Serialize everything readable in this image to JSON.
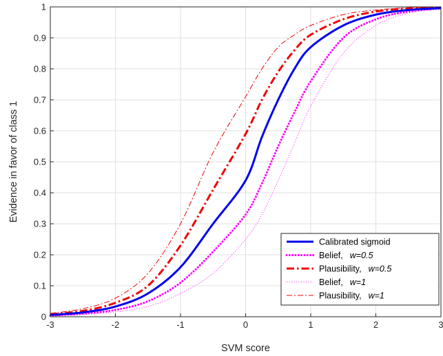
{
  "chart_data": {
    "type": "line",
    "title": "",
    "xlabel": "SVM score",
    "ylabel": "Evidence in favor of class 1",
    "xlim": [
      -3,
      3
    ],
    "ylim": [
      0,
      1
    ],
    "xticks": [
      -3,
      -2,
      -1,
      0,
      1,
      2,
      3
    ],
    "xtick_labels": [
      "-3",
      "-2",
      "-1",
      "0",
      "1",
      "2",
      "3"
    ],
    "yticks": [
      0,
      0.1,
      0.2,
      0.3,
      0.4,
      0.5,
      0.6,
      0.7,
      0.8,
      0.9,
      1
    ],
    "ytick_labels": [
      "0",
      "0.1",
      "0.2",
      "0.3",
      "0.4",
      "0.5",
      "0.6",
      "0.7",
      "0.8",
      "0.9",
      "1"
    ],
    "grid": true,
    "legend_position": "bottom-right",
    "x": [
      -3,
      -2.5,
      -2,
      -1.5,
      -1,
      -0.5,
      0,
      0.25,
      0.5,
      0.75,
      1,
      1.5,
      2,
      2.5,
      3
    ],
    "series": [
      {
        "name": "Calibrated sigmoid",
        "name_suffix": "",
        "color": "#0000ee",
        "dash": "solid",
        "width": "thick",
        "values": [
          0.006,
          0.014,
          0.033,
          0.075,
          0.16,
          0.3,
          0.44,
          0.58,
          0.7,
          0.8,
          0.87,
          0.94,
          0.975,
          0.99,
          0.996
        ]
      },
      {
        "name": "Belief,",
        "name_suffix": "w=0.5",
        "color": "#ff00ff",
        "dash": "dotted",
        "width": "thick",
        "values": [
          0.004,
          0.01,
          0.022,
          0.05,
          0.11,
          0.21,
          0.33,
          0.43,
          0.55,
          0.66,
          0.76,
          0.9,
          0.96,
          0.985,
          0.995
        ]
      },
      {
        "name": "Plausibility,",
        "name_suffix": "w=0.5",
        "color": "#ee0000",
        "dash": "dashdot",
        "width": "thick",
        "values": [
          0.008,
          0.019,
          0.045,
          0.1,
          0.23,
          0.41,
          0.59,
          0.7,
          0.79,
          0.86,
          0.91,
          0.96,
          0.985,
          0.995,
          0.998
        ]
      },
      {
        "name": "Belief,",
        "name_suffix": "w=1",
        "color": "#ff00ff",
        "dash": "dotted",
        "width": "thin",
        "values": [
          0.002,
          0.007,
          0.016,
          0.033,
          0.075,
          0.14,
          0.25,
          0.33,
          0.44,
          0.56,
          0.68,
          0.85,
          0.94,
          0.98,
          0.993
        ]
      },
      {
        "name": "Plausibility,",
        "name_suffix": "w=1",
        "color": "#ee0000",
        "dash": "dashdot",
        "width": "thin",
        "values": [
          0.011,
          0.026,
          0.06,
          0.14,
          0.3,
          0.53,
          0.71,
          0.8,
          0.87,
          0.91,
          0.94,
          0.975,
          0.99,
          0.997,
          0.999
        ]
      }
    ]
  }
}
